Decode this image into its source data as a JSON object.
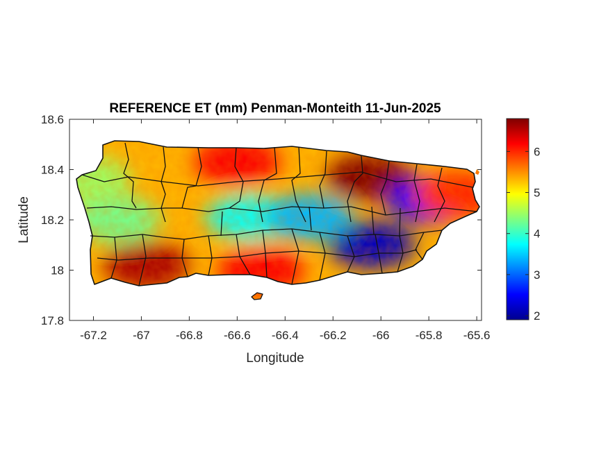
{
  "chart_data": {
    "type": "heatmap",
    "title": "REFERENCE ET (mm) Penman-Monteith 11-Jun-2025",
    "xlabel": "Longitude",
    "ylabel": "Latitude",
    "xlim": [
      -67.3,
      -65.58
    ],
    "ylim": [
      17.8,
      18.6
    ],
    "x_ticks": [
      "-67.2",
      "-67",
      "-66.8",
      "-66.6",
      "-66.4",
      "-66.2",
      "-66",
      "-65.8",
      "-65.6"
    ],
    "x_tick_values": [
      -67.2,
      -67.0,
      -66.8,
      -66.6,
      -66.4,
      -66.2,
      -66.0,
      -65.8,
      -65.6
    ],
    "y_ticks": [
      "18.6",
      "18.4",
      "18.2",
      "18",
      "17.8"
    ],
    "y_tick_values": [
      18.6,
      18.4,
      18.2,
      18.0,
      17.8
    ],
    "colorbar": {
      "colormap": "jet",
      "range": [
        1.9,
        6.8
      ],
      "ticks": [
        "2",
        "3",
        "4",
        "5",
        "6"
      ],
      "tick_values": [
        2,
        3,
        4,
        5,
        6
      ]
    },
    "field": [
      {
        "lon": -66.05,
        "lat": 18.37,
        "value": 6.8
      },
      {
        "lon": -65.8,
        "lat": 18.28,
        "value": 2.5
      },
      {
        "lon": -66.04,
        "lat": 18.1,
        "value": 2.2
      },
      {
        "lon": -66.98,
        "lat": 18.02,
        "value": 6.6
      },
      {
        "lon": -66.55,
        "lat": 18.21,
        "value": 3.8
      },
      {
        "lon": -66.3,
        "lat": 18.21,
        "value": 3.4
      },
      {
        "lon": -67.1,
        "lat": 18.2,
        "value": 4.3
      },
      {
        "lon": -67.22,
        "lat": 18.36,
        "value": 4.5
      },
      {
        "lon": -66.6,
        "lat": 18.43,
        "value": 6.2
      },
      {
        "lon": -65.68,
        "lat": 18.3,
        "value": 6.0
      },
      {
        "lon": -66.5,
        "lat": 18.0,
        "value": 6.2
      }
    ],
    "grid": false
  }
}
